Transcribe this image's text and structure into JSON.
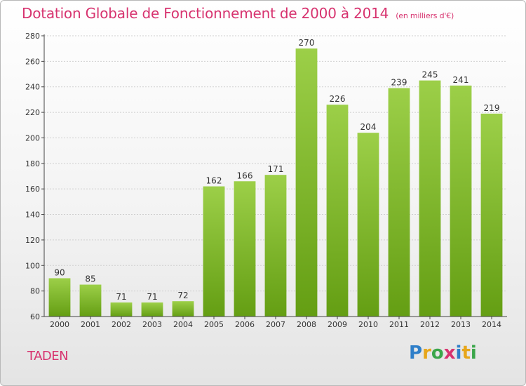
{
  "header": {
    "title": "Dotation Globale de Fonctionnement de 2000 à 2014",
    "subtitle": "(en milliers d'€)"
  },
  "commune": "TADEN",
  "logo": {
    "text": "Proxiti"
  },
  "colors": {
    "title": "#d7336f",
    "bar_top": "#9ccf48",
    "bar_bottom": "#649e13",
    "grid": "#cfcfcf"
  },
  "chart_data": {
    "type": "bar",
    "title": "Dotation Globale de Fonctionnement de 2000 à 2014",
    "subtitle": "(en milliers d'€)",
    "xlabel": "",
    "ylabel": "",
    "categories": [
      "2000",
      "2001",
      "2002",
      "2003",
      "2004",
      "2005",
      "2006",
      "2007",
      "2008",
      "2009",
      "2010",
      "2011",
      "2012",
      "2013",
      "2014"
    ],
    "values": [
      90,
      85,
      71,
      71,
      72,
      162,
      166,
      171,
      270,
      226,
      204,
      239,
      245,
      241,
      219
    ],
    "ylim": [
      60,
      280
    ],
    "yticks": [
      60,
      80,
      100,
      120,
      140,
      160,
      180,
      200,
      220,
      240,
      260,
      280
    ],
    "grid": true,
    "legend": "none"
  }
}
